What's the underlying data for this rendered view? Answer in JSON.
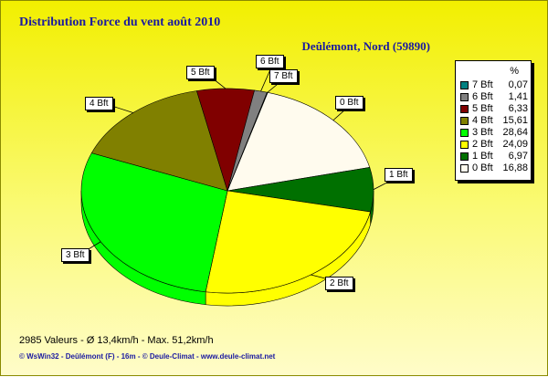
{
  "page": {
    "title": "Distribution Force du vent  août 2010",
    "subtitle": "Deûlémont, Nord (59890)",
    "stats": "2985 Valeurs   -   Ø 13,4km/h  -  Max. 51,2km/h",
    "footer": "© WsWin32  -  Deûlémont (F) - 16m  -  © Deule-Climat - www.deule-climat.net"
  },
  "chart_data": {
    "type": "pie",
    "title": "Distribution Force du vent  août 2010",
    "subtitle": "Deûlémont, Nord (59890)",
    "legend_header": "%",
    "legend_position": "right",
    "slices": [
      {
        "label": "0 Bft",
        "legend_value": "16,88",
        "value": 16.88,
        "color": "#fffbee"
      },
      {
        "label": "1 Bft",
        "legend_value": "6,97",
        "value": 6.97,
        "color": "#007000"
      },
      {
        "label": "2 Bft",
        "legend_value": "24,09",
        "value": 24.09,
        "color": "#ffff00"
      },
      {
        "label": "3 Bft",
        "legend_value": "28,64",
        "value": 28.64,
        "color": "#00ff00"
      },
      {
        "label": "4 Bft",
        "legend_value": "15,61",
        "value": 15.61,
        "color": "#808000"
      },
      {
        "label": "5 Bft",
        "legend_value": "6,33",
        "value": 6.33,
        "color": "#800000"
      },
      {
        "label": "6 Bft",
        "legend_value": "1,41",
        "value": 1.41,
        "color": "#808080"
      },
      {
        "label": "7 Bft",
        "legend_value": "0,07",
        "value": 0.07,
        "color": "#008080"
      }
    ],
    "legend_order": [
      "7 Bft",
      "6 Bft",
      "5 Bft",
      "4 Bft",
      "3 Bft",
      "2 Bft",
      "1 Bft",
      "0 Bft"
    ]
  }
}
